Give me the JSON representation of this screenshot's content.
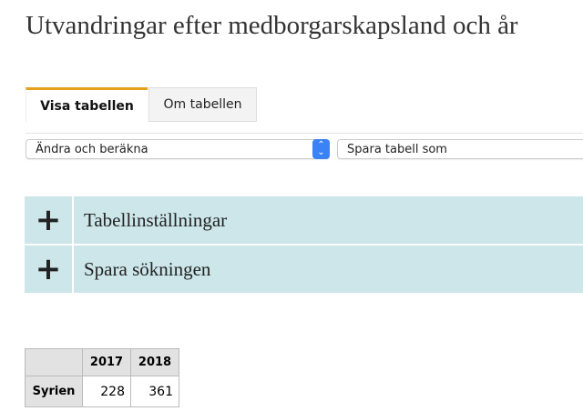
{
  "title": "Utvandringar efter medborgarskapsland och år",
  "tabs": [
    {
      "label": "Visa tabellen",
      "active": true
    },
    {
      "label": "Om tabellen",
      "active": false
    }
  ],
  "selects": {
    "edit": "Ändra och beräkna",
    "save": "Spara tabell som"
  },
  "accordions": [
    {
      "icon": "plus-icon",
      "label": "Tabellinställningar"
    },
    {
      "icon": "plus-icon",
      "label": "Spara sökningen"
    }
  ],
  "table": {
    "columns": [
      "2017",
      "2018"
    ],
    "rows": [
      {
        "label": "Syrien",
        "values": [
          "228",
          "361"
        ]
      }
    ]
  },
  "colors": {
    "accent": "#e3a21a",
    "accordion_bg": "#cce6ea"
  }
}
